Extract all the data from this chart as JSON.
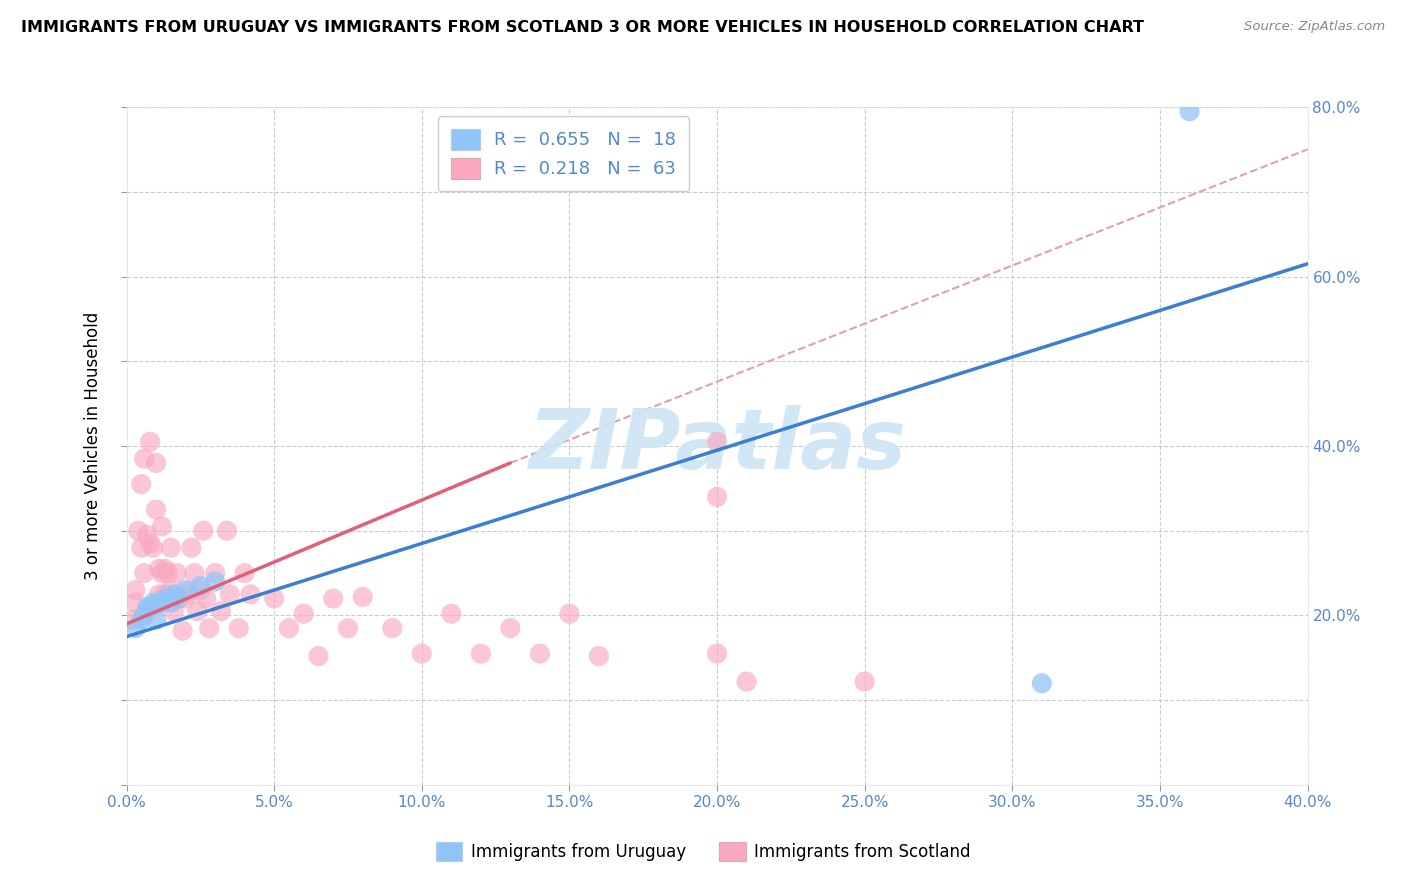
{
  "title": "IMMIGRANTS FROM URUGUAY VS IMMIGRANTS FROM SCOTLAND 3 OR MORE VEHICLES IN HOUSEHOLD CORRELATION CHART",
  "source": "Source: ZipAtlas.com",
  "ylabel_label": "3 or more Vehicles in Household",
  "legend_uruguay": "Immigrants from Uruguay",
  "legend_scotland": "Immigrants from Scotland",
  "r_uruguay": 0.655,
  "n_uruguay": 18,
  "r_scotland": 0.218,
  "n_scotland": 63,
  "color_uruguay": "#92c5f7",
  "color_scotland": "#f9a8c0",
  "color_line_uruguay": "#3a7fd4",
  "color_line_scotland": "#e0607a",
  "color_line_dashed": "#e0a0b0",
  "watermark": "ZIPatlas",
  "watermark_color": "#cce5f5",
  "xlim": [
    0.0,
    0.4
  ],
  "ylim": [
    0.0,
    0.8
  ],
  "xticks": [
    0.0,
    0.05,
    0.1,
    0.15,
    0.2,
    0.25,
    0.3,
    0.35,
    0.4
  ],
  "yticks": [
    0.0,
    0.1,
    0.2,
    0.3,
    0.4,
    0.5,
    0.6,
    0.7,
    0.8
  ],
  "line_uruguay": [
    [
      0.0,
      0.4
    ],
    [
      0.175,
      0.615
    ]
  ],
  "line_scotland_solid": [
    [
      0.0,
      0.13
    ],
    [
      0.19,
      0.38
    ]
  ],
  "line_scotland_dashed": [
    [
      0.13,
      0.4
    ],
    [
      0.38,
      0.75
    ]
  ],
  "uruguay_x": [
    0.003,
    0.005,
    0.006,
    0.007,
    0.008,
    0.009,
    0.01,
    0.011,
    0.012,
    0.013,
    0.015,
    0.016,
    0.017,
    0.02,
    0.025,
    0.03,
    0.31,
    0.36
  ],
  "uruguay_y": [
    0.185,
    0.195,
    0.2,
    0.21,
    0.21,
    0.215,
    0.195,
    0.215,
    0.215,
    0.22,
    0.215,
    0.225,
    0.22,
    0.23,
    0.235,
    0.24,
    0.12,
    0.795
  ],
  "scotland_x": [
    0.002,
    0.003,
    0.003,
    0.004,
    0.005,
    0.005,
    0.006,
    0.006,
    0.007,
    0.008,
    0.008,
    0.009,
    0.01,
    0.01,
    0.011,
    0.011,
    0.012,
    0.012,
    0.013,
    0.013,
    0.014,
    0.015,
    0.015,
    0.016,
    0.017,
    0.018,
    0.019,
    0.02,
    0.021,
    0.022,
    0.023,
    0.024,
    0.025,
    0.026,
    0.027,
    0.028,
    0.03,
    0.032,
    0.034,
    0.035,
    0.038,
    0.04,
    0.042,
    0.05,
    0.055,
    0.06,
    0.065,
    0.07,
    0.075,
    0.08,
    0.09,
    0.1,
    0.11,
    0.12,
    0.13,
    0.14,
    0.15,
    0.16,
    0.2,
    0.21,
    0.25,
    0.2,
    0.2
  ],
  "scotland_y": [
    0.195,
    0.215,
    0.23,
    0.3,
    0.28,
    0.355,
    0.25,
    0.385,
    0.295,
    0.285,
    0.405,
    0.28,
    0.325,
    0.38,
    0.225,
    0.255,
    0.25,
    0.305,
    0.225,
    0.255,
    0.25,
    0.23,
    0.28,
    0.205,
    0.25,
    0.22,
    0.182,
    0.22,
    0.228,
    0.28,
    0.25,
    0.205,
    0.23,
    0.3,
    0.22,
    0.185,
    0.25,
    0.205,
    0.3,
    0.225,
    0.185,
    0.25,
    0.225,
    0.22,
    0.185,
    0.202,
    0.152,
    0.22,
    0.185,
    0.222,
    0.185,
    0.155,
    0.202,
    0.155,
    0.185,
    0.155,
    0.202,
    0.152,
    0.155,
    0.122,
    0.122,
    0.405,
    0.34
  ]
}
